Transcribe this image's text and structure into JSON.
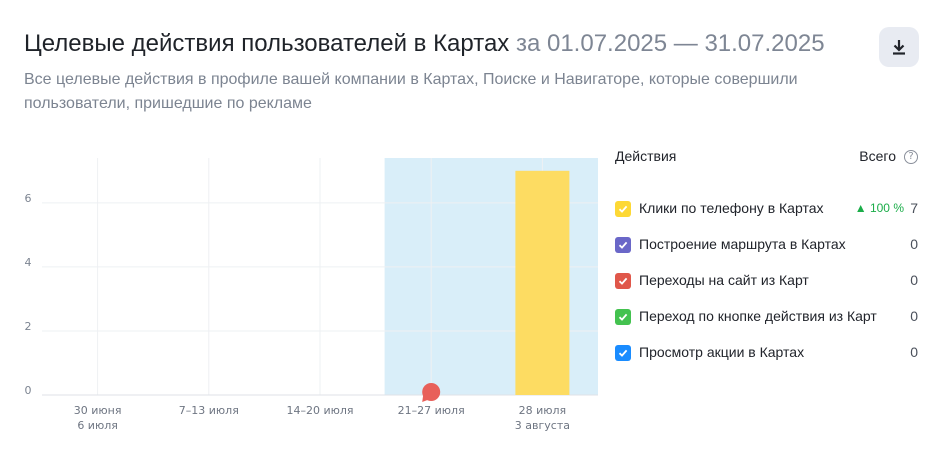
{
  "header": {
    "title": "Целевые действия пользователей в Картах",
    "period": "за 01.07.2025 — 31.07.2025",
    "subtitle": "Все целевые действия в профиле вашей компании в Картах, Поиске и Навигаторе, которые совершили пользователи, пришедшие по рекламе",
    "download_icon": "download-icon"
  },
  "legend": {
    "actions_label": "Действия",
    "total_label": "Всего",
    "help_glyph": "?",
    "items": [
      {
        "label": "Клики по телефону в Картах",
        "change": "▲ 100 %",
        "total": "7",
        "color": "#fdd835"
      },
      {
        "label": "Построение маршрута в Картах",
        "change": "",
        "total": "0",
        "color": "#6a67c8"
      },
      {
        "label": "Переходы на сайт из Карт",
        "change": "",
        "total": "0",
        "color": "#e0574a"
      },
      {
        "label": "Переход по кнопке действия из Карт",
        "change": "",
        "total": "0",
        "color": "#43c24f"
      },
      {
        "label": "Просмотр акции в Картах",
        "change": "",
        "total": "0",
        "color": "#1a8cff"
      }
    ]
  },
  "chart_data": {
    "type": "bar",
    "categories": [
      [
        "30 июня",
        "6 июля"
      ],
      [
        "7–13 июля"
      ],
      [
        "14–20 июля"
      ],
      [
        "21–27 июля"
      ],
      [
        "28 июля",
        "3 августа"
      ]
    ],
    "series": [
      {
        "name": "Клики по телефону в Картах",
        "values": [
          0,
          0,
          0,
          0,
          7
        ],
        "color": "#fddc62"
      }
    ],
    "yticks": [
      0,
      2,
      4,
      6
    ],
    "ylim": [
      0,
      7.4
    ],
    "highlighted_categories": [
      3,
      4
    ],
    "highlight_color": "#d9eef9",
    "marker": {
      "category": 3,
      "color": "#e8605a"
    },
    "grid": true,
    "legend_position": "right"
  }
}
